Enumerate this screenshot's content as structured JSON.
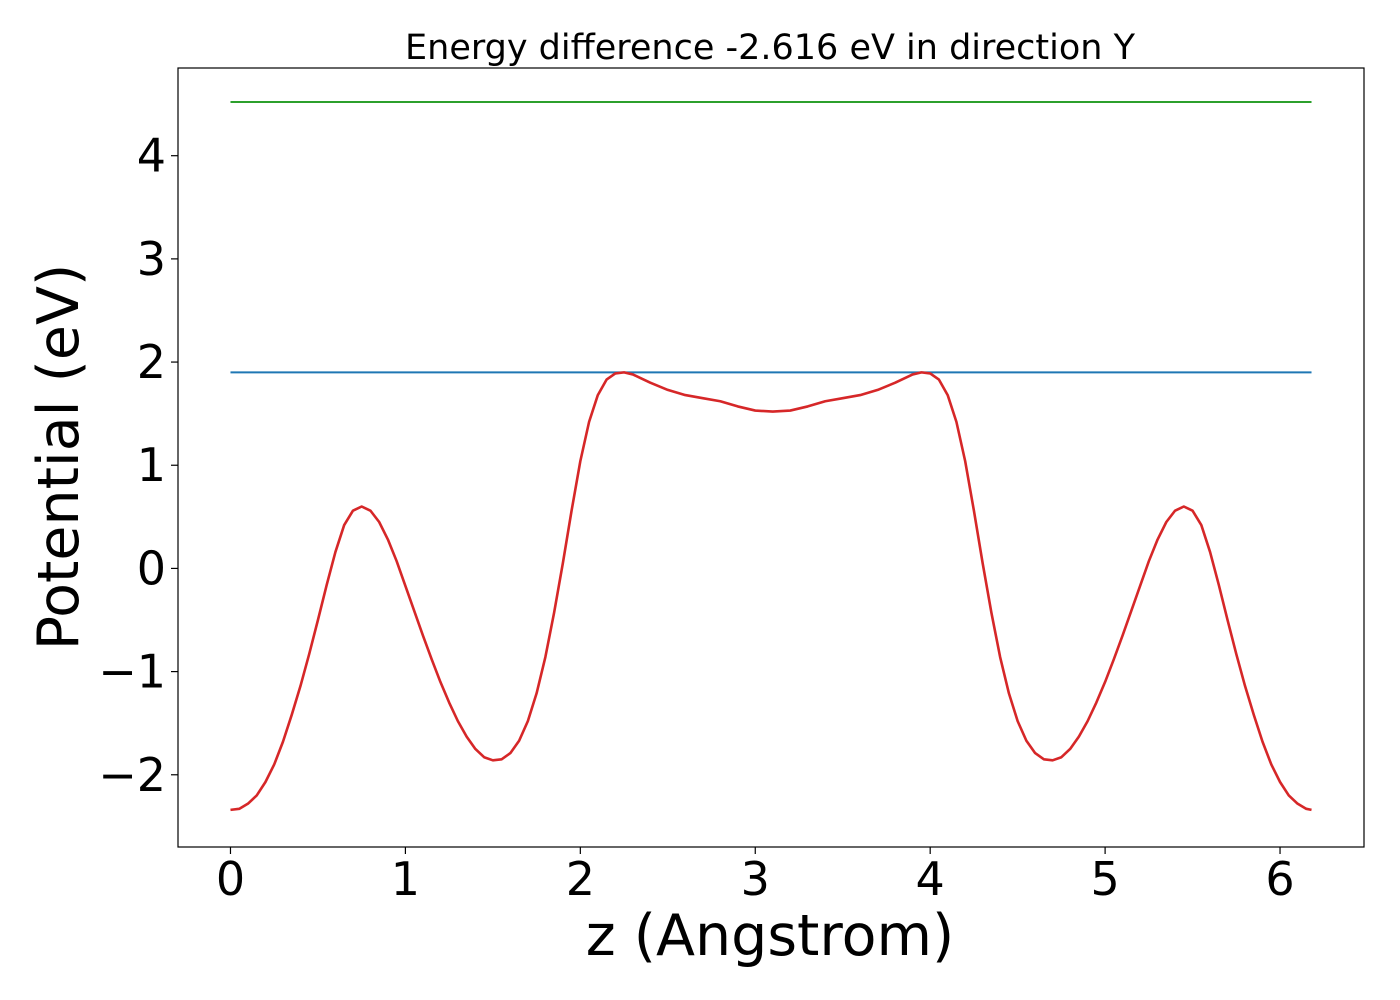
{
  "chart_data": {
    "type": "line",
    "title": "Energy difference -2.616 eV in direction Y",
    "xlabel": "z (Angstrom)",
    "ylabel": "Potential (eV)",
    "xlim": [
      -0.3,
      6.48
    ],
    "ylim": [
      -2.7,
      4.85
    ],
    "x_ticks": [
      0,
      1,
      2,
      3,
      4,
      5,
      6
    ],
    "x_tick_labels": [
      "0",
      "1",
      "2",
      "3",
      "4",
      "5",
      "6"
    ],
    "y_ticks": [
      -2,
      -1,
      0,
      1,
      2,
      3,
      4
    ],
    "y_tick_labels": [
      "−2",
      "−1",
      "0",
      "1",
      "2",
      "3",
      "4"
    ],
    "grid": false,
    "legend": "none",
    "series": [
      {
        "color": "#2ca02c",
        "kind": "hline",
        "x": [
          0,
          6.18
        ],
        "y": [
          4.52,
          4.52
        ]
      },
      {
        "color": "#1f77b4",
        "kind": "hline",
        "x": [
          0,
          6.18
        ],
        "y": [
          1.9,
          1.9
        ]
      },
      {
        "color": "#d62728",
        "kind": "curve",
        "points": [
          [
            0.0,
            -2.34
          ],
          [
            0.05,
            -2.33
          ],
          [
            0.1,
            -2.28
          ],
          [
            0.15,
            -2.2
          ],
          [
            0.2,
            -2.07
          ],
          [
            0.25,
            -1.9
          ],
          [
            0.3,
            -1.68
          ],
          [
            0.35,
            -1.42
          ],
          [
            0.4,
            -1.14
          ],
          [
            0.45,
            -0.83
          ],
          [
            0.5,
            -0.5
          ],
          [
            0.55,
            -0.16
          ],
          [
            0.6,
            0.16
          ],
          [
            0.65,
            0.42
          ],
          [
            0.7,
            0.56
          ],
          [
            0.75,
            0.6
          ],
          [
            0.8,
            0.56
          ],
          [
            0.85,
            0.45
          ],
          [
            0.9,
            0.28
          ],
          [
            0.95,
            0.07
          ],
          [
            1.0,
            -0.17
          ],
          [
            1.05,
            -0.41
          ],
          [
            1.1,
            -0.65
          ],
          [
            1.15,
            -0.88
          ],
          [
            1.2,
            -1.1
          ],
          [
            1.25,
            -1.3
          ],
          [
            1.3,
            -1.48
          ],
          [
            1.35,
            -1.63
          ],
          [
            1.4,
            -1.75
          ],
          [
            1.45,
            -1.83
          ],
          [
            1.5,
            -1.86
          ],
          [
            1.55,
            -1.85
          ],
          [
            1.6,
            -1.79
          ],
          [
            1.65,
            -1.67
          ],
          [
            1.7,
            -1.48
          ],
          [
            1.75,
            -1.21
          ],
          [
            1.8,
            -0.86
          ],
          [
            1.85,
            -0.43
          ],
          [
            1.9,
            0.05
          ],
          [
            1.95,
            0.56
          ],
          [
            2.0,
            1.04
          ],
          [
            2.05,
            1.42
          ],
          [
            2.1,
            1.68
          ],
          [
            2.15,
            1.83
          ],
          [
            2.2,
            1.89
          ],
          [
            2.25,
            1.9
          ],
          [
            2.3,
            1.88
          ],
          [
            2.35,
            1.84
          ],
          [
            2.4,
            1.8
          ],
          [
            2.5,
            1.73
          ],
          [
            2.6,
            1.68
          ],
          [
            2.7,
            1.65
          ],
          [
            2.8,
            1.62
          ],
          [
            2.9,
            1.57
          ],
          [
            3.0,
            1.53
          ],
          [
            3.1,
            1.52
          ],
          [
            3.2,
            1.53
          ],
          [
            3.3,
            1.57
          ],
          [
            3.4,
            1.62
          ],
          [
            3.5,
            1.65
          ],
          [
            3.6,
            1.68
          ],
          [
            3.7,
            1.73
          ],
          [
            3.8,
            1.8
          ],
          [
            3.85,
            1.84
          ],
          [
            3.9,
            1.88
          ],
          [
            3.95,
            1.9
          ],
          [
            4.0,
            1.89
          ],
          [
            4.05,
            1.83
          ],
          [
            4.1,
            1.68
          ],
          [
            4.15,
            1.42
          ],
          [
            4.2,
            1.04
          ],
          [
            4.25,
            0.56
          ],
          [
            4.3,
            0.05
          ],
          [
            4.35,
            -0.43
          ],
          [
            4.4,
            -0.86
          ],
          [
            4.45,
            -1.21
          ],
          [
            4.5,
            -1.48
          ],
          [
            4.55,
            -1.67
          ],
          [
            4.6,
            -1.79
          ],
          [
            4.65,
            -1.85
          ],
          [
            4.7,
            -1.86
          ],
          [
            4.75,
            -1.83
          ],
          [
            4.8,
            -1.75
          ],
          [
            4.85,
            -1.63
          ],
          [
            4.9,
            -1.48
          ],
          [
            4.95,
            -1.3
          ],
          [
            5.0,
            -1.1
          ],
          [
            5.05,
            -0.88
          ],
          [
            5.1,
            -0.65
          ],
          [
            5.15,
            -0.41
          ],
          [
            5.2,
            -0.17
          ],
          [
            5.25,
            0.07
          ],
          [
            5.3,
            0.28
          ],
          [
            5.35,
            0.45
          ],
          [
            5.4,
            0.56
          ],
          [
            5.45,
            0.6
          ],
          [
            5.5,
            0.56
          ],
          [
            5.55,
            0.42
          ],
          [
            5.6,
            0.16
          ],
          [
            5.65,
            -0.16
          ],
          [
            5.7,
            -0.5
          ],
          [
            5.75,
            -0.83
          ],
          [
            5.8,
            -1.14
          ],
          [
            5.85,
            -1.42
          ],
          [
            5.9,
            -1.68
          ],
          [
            5.95,
            -1.9
          ],
          [
            6.0,
            -2.07
          ],
          [
            6.05,
            -2.2
          ],
          [
            6.1,
            -2.28
          ],
          [
            6.15,
            -2.33
          ],
          [
            6.18,
            -2.34
          ]
        ]
      }
    ]
  }
}
